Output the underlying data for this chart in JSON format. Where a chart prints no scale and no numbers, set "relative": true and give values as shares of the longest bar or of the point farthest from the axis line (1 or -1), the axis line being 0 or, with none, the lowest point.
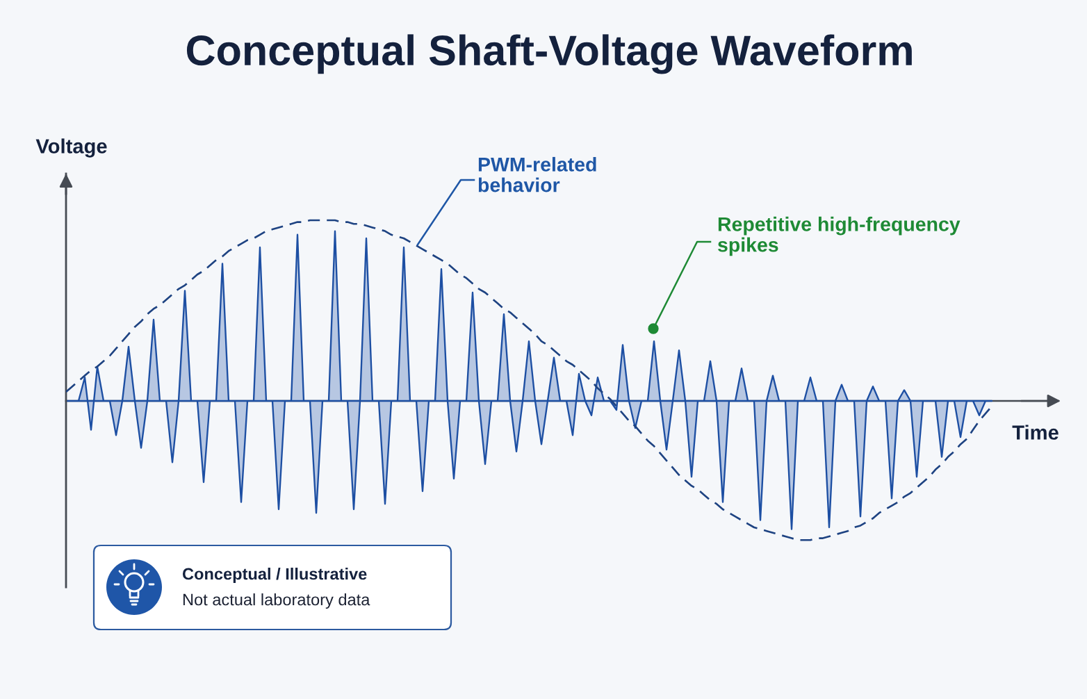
{
  "chart_data": {
    "type": "line",
    "title": "Conceptual Shaft-Voltage Waveform",
    "xlabel": "Time",
    "ylabel": "Voltage",
    "relative": true,
    "categories": [
      null,
      null,
      null,
      null,
      null,
      null,
      null,
      null,
      null,
      null,
      null,
      null,
      null,
      null,
      null,
      null,
      null,
      null,
      null,
      null,
      null,
      null,
      null,
      null,
      null,
      null,
      null,
      null,
      null,
      null,
      null,
      null,
      null,
      null,
      null,
      null,
      null,
      null,
      null,
      null,
      null,
      null,
      null,
      null,
      null,
      null,
      null,
      null,
      null,
      null,
      null,
      null,
      null,
      null,
      null,
      null,
      null,
      null,
      null,
      null,
      null,
      null,
      null,
      null,
      null,
      null,
      null,
      null,
      null,
      null,
      null,
      null,
      null,
      null,
      null,
      null,
      null,
      null,
      null,
      null,
      null,
      null,
      null,
      null,
      null,
      null,
      null,
      null,
      null,
      null,
      null,
      null,
      null,
      null,
      null,
      null,
      null,
      null,
      null,
      null,
      null,
      null,
      null,
      null,
      null,
      null,
      null,
      null,
      null,
      null,
      null,
      null,
      null,
      null,
      null,
      null,
      null,
      null,
      null,
      null,
      null,
      null,
      null,
      null,
      null,
      null,
      null,
      null,
      null,
      null,
      null,
      null,
      null,
      null,
      null,
      null,
      null,
      null,
      null,
      null,
      null,
      null,
      null,
      null,
      null,
      null,
      null,
      null,
      null
    ],
    "series": [
      {
        "type": "area",
        "color": "#1d4fa3",
        "values": [
          0,
          0,
          0,
          0.13,
          -0.16,
          0.19,
          0,
          0,
          -0.19,
          0,
          0.3,
          0,
          -0.26,
          0,
          0.45,
          0,
          0,
          -0.34,
          0,
          0.61,
          0,
          0,
          -0.45,
          0,
          0,
          0.76,
          0,
          0,
          -0.56,
          0,
          0,
          0.85,
          0,
          0,
          -0.6,
          0,
          0,
          0.92,
          0,
          0,
          -0.62,
          0,
          0,
          0.94,
          0,
          0,
          -0.6,
          0,
          0.9,
          0,
          0,
          -0.57,
          0,
          0,
          0.85,
          0,
          0,
          -0.5,
          0,
          0,
          0.73,
          0,
          -0.43,
          0,
          0,
          0.6,
          0,
          -0.35,
          0,
          0,
          0.48,
          0,
          -0.28,
          0,
          0.33,
          0,
          -0.24,
          0,
          0.24,
          0,
          0,
          -0.19,
          0.15,
          0,
          -0.08,
          0.13,
          0,
          0,
          -0.05,
          0.31,
          0,
          -0.15,
          0,
          0,
          0.33,
          0,
          -0.27,
          0,
          0.28,
          0,
          -0.42,
          0,
          0,
          0.22,
          0,
          -0.56,
          0,
          0,
          0.18,
          0,
          0,
          -0.66,
          0,
          0.14,
          0,
          0,
          -0.71,
          0,
          0,
          0.13,
          0,
          0,
          -0.7,
          0,
          0.09,
          0,
          0,
          -0.64,
          0,
          0.08,
          0,
          0,
          -0.54,
          0,
          0.06,
          0,
          -0.42,
          0,
          0,
          0,
          -0.31,
          0,
          0,
          -0.2,
          0,
          0,
          -0.08,
          0,
          0
        ]
      },
      {
        "color": "#1e4382",
        "line_style": "dashed",
        "values": [
          0.05,
          0.08,
          0.11,
          0.14,
          0.17,
          0.19,
          0.22,
          0.25,
          0.29,
          0.33,
          0.37,
          0.41,
          0.44,
          0.48,
          0.51,
          0.53,
          0.56,
          0.59,
          0.62,
          0.64,
          0.67,
          0.7,
          0.72,
          0.75,
          0.78,
          0.8,
          0.83,
          0.85,
          0.87,
          0.89,
          0.9,
          0.92,
          0.94,
          0.95,
          0.96,
          0.97,
          0.98,
          0.99,
          0.99,
          1.0,
          1.0,
          1.0,
          1.0,
          1.0,
          0.99,
          0.99,
          0.98,
          0.98,
          0.97,
          0.96,
          0.95,
          0.94,
          0.92,
          0.91,
          0.9,
          0.88,
          0.86,
          0.84,
          0.82,
          0.8,
          0.78,
          0.76,
          0.73,
          0.7,
          0.68,
          0.65,
          0.62,
          0.6,
          0.57,
          0.54,
          0.51,
          0.49,
          0.46,
          0.43,
          0.4,
          0.37,
          0.33,
          0.31,
          0.28,
          0.25,
          0.22,
          0.2,
          0.17,
          0.14,
          0.11,
          0.07,
          0.04,
          0.01,
          -0.03,
          -0.07,
          -0.11,
          -0.14,
          -0.18,
          -0.22,
          -0.25,
          -0.29,
          -0.33,
          -0.37,
          -0.41,
          -0.44,
          -0.47,
          -0.49,
          -0.52,
          -0.55,
          -0.57,
          -0.6,
          -0.62,
          -0.64,
          -0.66,
          -0.68,
          -0.7,
          -0.71,
          -0.72,
          -0.73,
          -0.74,
          -0.75,
          -0.76,
          -0.77,
          -0.77,
          -0.77,
          -0.76,
          -0.76,
          -0.75,
          -0.74,
          -0.73,
          -0.72,
          -0.7,
          -0.69,
          -0.67,
          -0.65,
          -0.62,
          -0.6,
          -0.58,
          -0.56,
          -0.53,
          -0.51,
          -0.48,
          -0.45,
          -0.42,
          -0.38,
          -0.35,
          -0.31,
          -0.28,
          -0.24,
          -0.21,
          -0.16,
          -0.11,
          -0.07,
          -0.03
        ]
      }
    ],
    "annotations": [
      "PWM-related\nbehavior",
      "Repetitive high-frequency\nspikes",
      "Conceptual / Illustrative",
      "Not actual laboratory data"
    ]
  }
}
